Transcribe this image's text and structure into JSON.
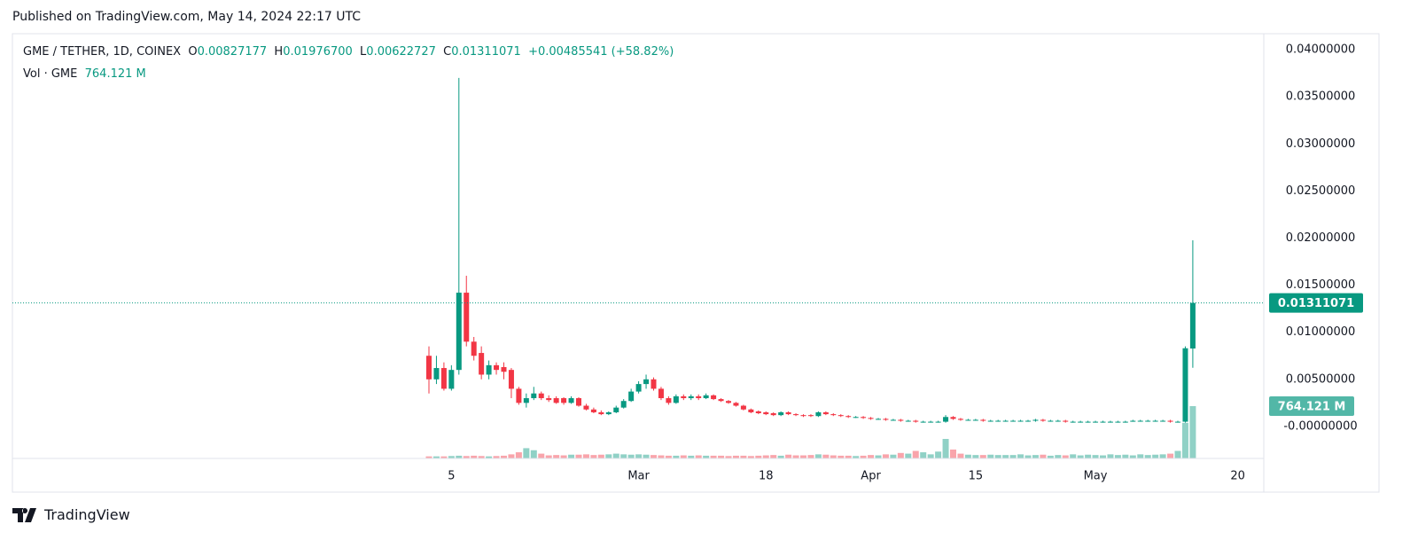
{
  "page_header": "Published on TradingView.com, May 14, 2024 22:17 UTC",
  "footer": {
    "brand": "TradingView"
  },
  "chart_data": {
    "type": "candlestick",
    "title": "GME / TETHER, 1D, COINEX",
    "legend": {
      "open_key": "O",
      "open": "0.00827177",
      "high_key": "H",
      "high": "0.01976700",
      "low_key": "L",
      "low": "0.00622727",
      "close_key": "C",
      "close": "0.01311071",
      "change": "+0.00485541",
      "change_pct": "(+58.82%)",
      "volume_key": "Vol · GME",
      "volume": "764.121 M"
    },
    "x": [
      "2024-02-02",
      "2024-02-03",
      "2024-02-04",
      "2024-02-05",
      "2024-02-06",
      "2024-02-07",
      "2024-02-08",
      "2024-02-09",
      "2024-02-10",
      "2024-02-11",
      "2024-02-12",
      "2024-02-13",
      "2024-02-14",
      "2024-02-15",
      "2024-02-16",
      "2024-02-17",
      "2024-02-18",
      "2024-02-19",
      "2024-02-20",
      "2024-02-21",
      "2024-02-22",
      "2024-02-23",
      "2024-02-24",
      "2024-02-25",
      "2024-02-26",
      "2024-02-27",
      "2024-02-28",
      "2024-02-29",
      "2024-03-01",
      "2024-03-02",
      "2024-03-03",
      "2024-03-04",
      "2024-03-05",
      "2024-03-06",
      "2024-03-07",
      "2024-03-08",
      "2024-03-09",
      "2024-03-10",
      "2024-03-11",
      "2024-03-12",
      "2024-03-13",
      "2024-03-14",
      "2024-03-15",
      "2024-03-16",
      "2024-03-17",
      "2024-03-18",
      "2024-03-19",
      "2024-03-20",
      "2024-03-21",
      "2024-03-22",
      "2024-03-23",
      "2024-03-24",
      "2024-03-25",
      "2024-03-26",
      "2024-03-27",
      "2024-03-28",
      "2024-03-29",
      "2024-03-30",
      "2024-03-31",
      "2024-04-01",
      "2024-04-02",
      "2024-04-03",
      "2024-04-04",
      "2024-04-05",
      "2024-04-06",
      "2024-04-07",
      "2024-04-08",
      "2024-04-09",
      "2024-04-10",
      "2024-04-11",
      "2024-04-12",
      "2024-04-13",
      "2024-04-14",
      "2024-04-15",
      "2024-04-16",
      "2024-04-17",
      "2024-04-18",
      "2024-04-19",
      "2024-04-20",
      "2024-04-21",
      "2024-04-22",
      "2024-04-23",
      "2024-04-24",
      "2024-04-25",
      "2024-04-26",
      "2024-04-27",
      "2024-04-28",
      "2024-04-29",
      "2024-04-30",
      "2024-05-01",
      "2024-05-02",
      "2024-05-03",
      "2024-05-04",
      "2024-05-05",
      "2024-05-06",
      "2024-05-07",
      "2024-05-08",
      "2024-05-09",
      "2024-05-10",
      "2024-05-11",
      "2024-05-12",
      "2024-05-13",
      "2024-05-14"
    ],
    "series": [
      {
        "name": "GME / TETHER",
        "up_color": "#089981",
        "down_color": "#f23645",
        "open": [
          0.0075,
          0.005,
          0.0062,
          0.004,
          0.006,
          0.0142,
          0.009,
          0.0078,
          0.0055,
          0.0065,
          0.0063,
          0.006,
          0.004,
          0.0025,
          0.003,
          0.0035,
          0.003,
          0.003,
          0.003,
          0.0025,
          0.003,
          0.0022,
          0.0018,
          0.0015,
          0.0013,
          0.0015,
          0.002,
          0.0027,
          0.0037,
          0.0045,
          0.005,
          0.004,
          0.003,
          0.0025,
          0.0032,
          0.003,
          0.0032,
          0.003,
          0.0033,
          0.0029,
          0.0027,
          0.0025,
          0.0022,
          0.0018,
          0.0016,
          0.0015,
          0.0014,
          0.0012,
          0.0015,
          0.0013,
          0.0012,
          0.0012,
          0.0011,
          0.0015,
          0.0013,
          0.0012,
          0.0011,
          0.001,
          0.001,
          0.0009,
          0.0008,
          0.0008,
          0.0007,
          0.0007,
          0.0006,
          0.0006,
          0.0005,
          0.0005,
          0.0005,
          0.0005,
          0.001,
          0.0008,
          0.0007,
          0.0007,
          0.0007,
          0.0006,
          0.0006,
          0.0006,
          0.0006,
          0.0006,
          0.0006,
          0.0006,
          0.0007,
          0.0006,
          0.0006,
          0.0006,
          0.0005,
          0.0005,
          0.0005,
          0.0005,
          0.0005,
          0.0005,
          0.0005,
          0.0005,
          0.0005,
          0.0006,
          0.0006,
          0.0006,
          0.0006,
          0.0006,
          0.0005,
          0.0005,
          0.00827177
        ],
        "high": [
          0.0085,
          0.0075,
          0.0068,
          0.0065,
          0.037,
          0.016,
          0.0095,
          0.0085,
          0.007,
          0.0068,
          0.0068,
          0.0062,
          0.0042,
          0.0035,
          0.0042,
          0.0037,
          0.0033,
          0.0032,
          0.0031,
          0.0032,
          0.0031,
          0.0024,
          0.002,
          0.0017,
          0.0016,
          0.0022,
          0.0029,
          0.004,
          0.0048,
          0.0055,
          0.0052,
          0.0042,
          0.0032,
          0.0034,
          0.0034,
          0.0034,
          0.0034,
          0.0035,
          0.0034,
          0.003,
          0.0028,
          0.0026,
          0.0023,
          0.0019,
          0.0017,
          0.0016,
          0.0015,
          0.0016,
          0.0016,
          0.0014,
          0.0013,
          0.0013,
          0.0016,
          0.0016,
          0.0014,
          0.0013,
          0.0012,
          0.0011,
          0.0011,
          0.001,
          0.0009,
          0.0009,
          0.0008,
          0.0008,
          0.0007,
          0.0007,
          0.0006,
          0.0006,
          0.0006,
          0.0012,
          0.0011,
          0.0009,
          0.0008,
          0.0008,
          0.0008,
          0.0007,
          0.0007,
          0.0007,
          0.0007,
          0.0007,
          0.0007,
          0.0008,
          0.0008,
          0.0007,
          0.0007,
          0.0007,
          0.0006,
          0.0006,
          0.0006,
          0.0006,
          0.0006,
          0.0006,
          0.0006,
          0.0006,
          0.0007,
          0.0007,
          0.0007,
          0.0007,
          0.0007,
          0.0007,
          0.0006,
          0.0085,
          0.019767
        ],
        "low": [
          0.0035,
          0.0045,
          0.0038,
          0.0038,
          0.0055,
          0.0085,
          0.007,
          0.005,
          0.005,
          0.0055,
          0.005,
          0.003,
          0.0023,
          0.002,
          0.0028,
          0.0028,
          0.0026,
          0.0024,
          0.0023,
          0.0024,
          0.0021,
          0.0017,
          0.0014,
          0.0012,
          0.0012,
          0.0014,
          0.0019,
          0.0026,
          0.0035,
          0.004,
          0.0038,
          0.0028,
          0.0023,
          0.0024,
          0.0028,
          0.0028,
          0.0028,
          0.0029,
          0.0028,
          0.0026,
          0.0024,
          0.0021,
          0.0017,
          0.0014,
          0.0013,
          0.0012,
          0.0011,
          0.0011,
          0.0012,
          0.0011,
          0.001,
          0.001,
          0.001,
          0.0012,
          0.0011,
          0.001,
          0.0009,
          0.0009,
          0.0008,
          0.0007,
          0.0007,
          0.0006,
          0.0006,
          0.0005,
          0.0005,
          0.0004,
          0.0004,
          0.0004,
          0.0004,
          0.0004,
          0.0007,
          0.0006,
          0.0006,
          0.0006,
          0.0005,
          0.0005,
          0.0005,
          0.0005,
          0.0005,
          0.0005,
          0.0005,
          0.0005,
          0.0005,
          0.0005,
          0.0005,
          0.0004,
          0.0004,
          0.0004,
          0.0004,
          0.0004,
          0.0004,
          0.0004,
          0.0004,
          0.0004,
          0.0005,
          0.0005,
          0.0005,
          0.0005,
          0.0005,
          0.0004,
          0.0004,
          0.0004,
          0.00622727
        ],
        "close": [
          0.005,
          0.0062,
          0.004,
          0.006,
          0.0142,
          0.009,
          0.0075,
          0.0055,
          0.0065,
          0.006,
          0.0058,
          0.004,
          0.0025,
          0.003,
          0.0035,
          0.003,
          0.0028,
          0.0025,
          0.0025,
          0.003,
          0.0022,
          0.0018,
          0.0015,
          0.0013,
          0.0015,
          0.002,
          0.0027,
          0.0037,
          0.0045,
          0.005,
          0.004,
          0.003,
          0.0025,
          0.0032,
          0.003,
          0.0032,
          0.003,
          0.0033,
          0.0029,
          0.0027,
          0.0025,
          0.0022,
          0.0018,
          0.0015,
          0.0014,
          0.0013,
          0.0012,
          0.0015,
          0.0013,
          0.0012,
          0.0011,
          0.0011,
          0.0015,
          0.0013,
          0.0012,
          0.0011,
          0.001,
          0.001,
          0.0009,
          0.0008,
          0.0008,
          0.0007,
          0.0007,
          0.0006,
          0.0006,
          0.0005,
          0.0005,
          0.0005,
          0.0005,
          0.001,
          0.0008,
          0.0007,
          0.0007,
          0.0007,
          0.0006,
          0.0006,
          0.0006,
          0.0006,
          0.0006,
          0.0006,
          0.0006,
          0.0007,
          0.0006,
          0.0006,
          0.0006,
          0.0005,
          0.0005,
          0.0005,
          0.0005,
          0.0005,
          0.0005,
          0.0005,
          0.0005,
          0.0005,
          0.0006,
          0.0006,
          0.0006,
          0.0006,
          0.0006,
          0.0005,
          0.0005,
          0.0083,
          0.01311071
        ],
        "volume": [
          30,
          30,
          30,
          35,
          40,
          35,
          40,
          35,
          30,
          35,
          40,
          60,
          90,
          150,
          120,
          70,
          45,
          50,
          45,
          55,
          55,
          60,
          50,
          55,
          60,
          70,
          60,
          55,
          60,
          55,
          50,
          45,
          40,
          40,
          45,
          40,
          45,
          40,
          40,
          40,
          35,
          40,
          40,
          35,
          40,
          45,
          50,
          40,
          55,
          45,
          45,
          50,
          60,
          55,
          45,
          40,
          40,
          35,
          40,
          50,
          45,
          60,
          55,
          80,
          70,
          110,
          90,
          60,
          100,
          285,
          130,
          70,
          55,
          50,
          50,
          55,
          50,
          50,
          50,
          60,
          45,
          50,
          55,
          40,
          50,
          45,
          60,
          45,
          55,
          50,
          45,
          60,
          50,
          55,
          45,
          60,
          50,
          55,
          60,
          70,
          110,
          520,
          764.121
        ]
      }
    ],
    "ylim": [
      -0.0034,
      0.0417
    ],
    "yticks": [
      {
        "value": 0,
        "label": "-0.00000000"
      },
      {
        "value": 0.005,
        "label": "0.00500000"
      },
      {
        "value": 0.01,
        "label": "0.01000000"
      },
      {
        "value": 0.015,
        "label": "0.01500000"
      },
      {
        "value": 0.02,
        "label": "0.02000000"
      },
      {
        "value": 0.025,
        "label": "0.02500000"
      },
      {
        "value": 0.03,
        "label": "0.03000000"
      },
      {
        "value": 0.035,
        "label": "0.03500000"
      },
      {
        "value": 0.04,
        "label": "0.04000000"
      }
    ],
    "xticks": [
      {
        "value": "2024-02-05",
        "label": "5"
      },
      {
        "value": "2024-03-01",
        "label": "Mar"
      },
      {
        "value": "2024-03-18",
        "label": "18"
      },
      {
        "value": "2024-04-01",
        "label": "Apr"
      },
      {
        "value": "2024-04-15",
        "label": "15"
      },
      {
        "value": "2024-05-01",
        "label": "May"
      },
      {
        "value": "2024-05-20",
        "label": "20"
      }
    ],
    "grid": true
  }
}
